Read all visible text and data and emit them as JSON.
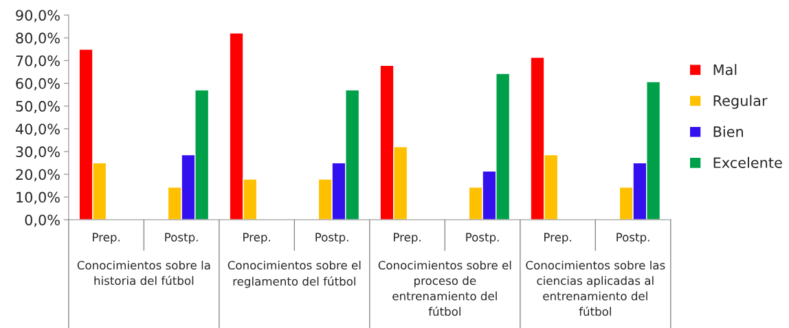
{
  "chart_data": {
    "type": "bar",
    "categories": [
      "Prep.",
      "Postp.",
      "Prep.",
      "Postp.",
      "Prep.",
      "Postp.",
      "Prep.",
      "Postp."
    ],
    "series": [
      {
        "name": "Mal",
        "color": "#ff0000",
        "values": [
          75.0,
          null,
          82.1,
          null,
          67.9,
          null,
          71.4,
          null
        ]
      },
      {
        "name": "Regular",
        "color": "#ffc000",
        "values": [
          25.0,
          14.3,
          17.9,
          17.9,
          32.1,
          14.3,
          28.6,
          14.3
        ]
      },
      {
        "name": "Bien",
        "color": "#3311ee",
        "values": [
          null,
          28.6,
          null,
          25.0,
          null,
          21.4,
          null,
          25.0
        ]
      },
      {
        "name": "Excelente",
        "color": "#00a04a",
        "values": [
          null,
          57.1,
          null,
          57.1,
          null,
          64.3,
          null,
          60.7
        ]
      }
    ],
    "annotations": [
      "Conocimientos sobre la\nhistoria del fútbol",
      "Conocimientos sobre el\nreglamento del fútbol",
      "Conocimientos sobre el\nproceso de\nentrenamiento del\nfútbol",
      "Conocimientos sobre las\nciencias aplicadas al\nentrenamiento del\nfútbol"
    ],
    "ylim": [
      0,
      90
    ],
    "yticks": [
      {
        "value": 0,
        "label": "0,0%"
      },
      {
        "value": 10,
        "label": "10,0%"
      },
      {
        "value": 20,
        "label": "20,0%"
      },
      {
        "value": 30,
        "label": "30,0%"
      },
      {
        "value": 40,
        "label": "40,0%"
      },
      {
        "value": 50,
        "label": "50,0%"
      },
      {
        "value": 60,
        "label": "60,0%"
      },
      {
        "value": 70,
        "label": "70,0%"
      },
      {
        "value": 80,
        "label": "80,0%"
      },
      {
        "value": 90,
        "label": "90,0%"
      }
    ],
    "grid": false,
    "legend": "right"
  }
}
